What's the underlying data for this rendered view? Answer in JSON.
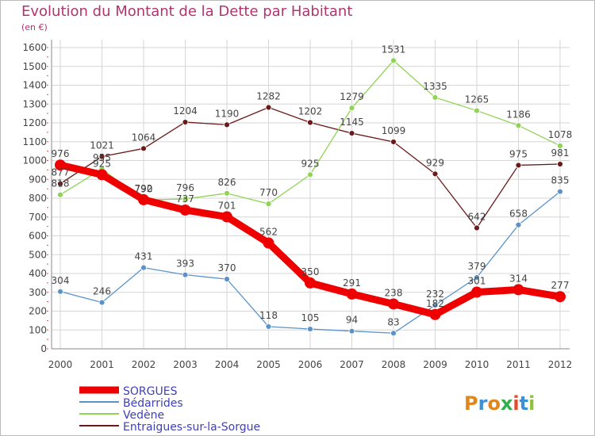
{
  "title": "Evolution du Montant de la Dette par Habitant",
  "subtitle": "(en €)",
  "brand": "Proxiti",
  "chart_data": {
    "type": "line",
    "title": "Evolution du Montant de la Dette par Habitant",
    "subtitle": "(en €)",
    "x": [
      "2000",
      "2001",
      "2002",
      "2003",
      "2004",
      "2005",
      "2006",
      "2007",
      "2008",
      "2009",
      "2010",
      "2011",
      "2012"
    ],
    "yticks": [
      0,
      100,
      200,
      300,
      400,
      500,
      600,
      700,
      800,
      900,
      1000,
      1100,
      1200,
      1300,
      1400,
      1500,
      1600
    ],
    "ylim": [
      0,
      1600
    ],
    "grid": true,
    "legend_placement": "bottom-left",
    "series": [
      {
        "name": "Entraigues-sur-la-Sorgue",
        "color": "#6b1a1a",
        "values": [
          877,
          1021,
          1064,
          1204,
          1190,
          1282,
          1202,
          1145,
          1099,
          929,
          642,
          975,
          981
        ]
      },
      {
        "name": "Vedène",
        "color": "#8fd454",
        "values": [
          818,
          955,
          790,
          796,
          826,
          770,
          925,
          1279,
          1531,
          1335,
          1265,
          1186,
          1078
        ]
      },
      {
        "name": "Bédarrides",
        "color": "#5b93c8",
        "values": [
          304,
          246,
          431,
          393,
          370,
          118,
          105,
          94,
          83,
          232,
          379,
          658,
          835
        ]
      },
      {
        "name": "SORGUES",
        "color": "#ee0000",
        "values": [
          976,
          925,
          792,
          737,
          701,
          562,
          350,
          291,
          238,
          182,
          301,
          314,
          277
        ]
      }
    ],
    "legend_order": [
      "SORGUES",
      "Bédarrides",
      "Vedène",
      "Entraigues-sur-la-Sorgue"
    ],
    "data_labels": {
      "Entraigues-sur-la-Sorgue": [
        "877",
        "1021",
        "1064",
        "1204",
        "1190",
        "1282",
        "1202",
        "1145",
        "1099",
        "929",
        "642",
        "975",
        "981"
      ],
      "Vedène": [
        "818",
        "955",
        "790",
        "796",
        "826",
        "770",
        "925",
        "1279",
        "1531",
        "1335",
        "1265",
        "1186",
        "1078"
      ],
      "Bédarrides": [
        "304",
        "246",
        "431",
        "393",
        "370",
        "118",
        "105",
        "94",
        "83",
        "232",
        "379",
        "658",
        "835"
      ],
      "SORGUES": [
        "976",
        "925",
        "792",
        "737",
        "701",
        "562",
        "350",
        "291",
        "238",
        "182",
        "301",
        "314",
        "277"
      ]
    }
  }
}
